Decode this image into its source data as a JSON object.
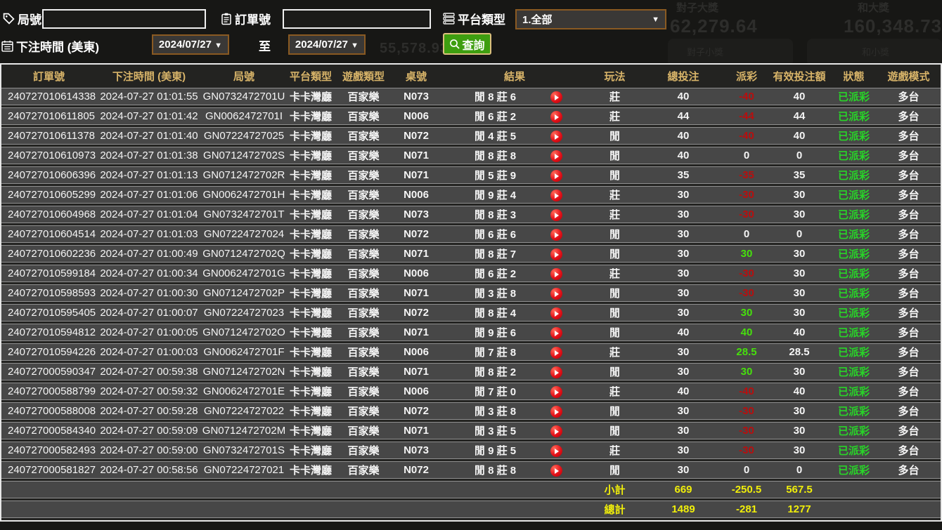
{
  "background_ghost": {
    "cards": [
      {
        "title": "對子大獎",
        "value": "62,279.64"
      },
      {
        "title": "和大獎",
        "value": "160,348.73"
      },
      {
        "title": "對子小獎",
        "value": ""
      },
      {
        "title": "和小獎",
        "value": ""
      }
    ],
    "amount_left": "55,578.93"
  },
  "filters": {
    "round_label": "局號",
    "order_label": "訂單號",
    "platform_label": "平台類型",
    "platform_value": "1.全部",
    "bet_time_label": "下注時間 (美東)",
    "date_from": "2024/07/27",
    "date_to": "2024/07/27",
    "to_label": "至",
    "search_label": "查詢",
    "dropdown_arrow": "▼"
  },
  "table": {
    "headers": [
      "訂單號",
      "下注時間 (美東)",
      "局號",
      "平台類型",
      "遊戲類型",
      "桌號",
      "結果",
      "玩法",
      "總投注",
      "派彩",
      "有效投注額",
      "狀態",
      "遊戲模式"
    ],
    "rows": [
      {
        "order": "240727010614338",
        "time": "2024-07-27 01:01:55",
        "round": "GN0732472701U",
        "platform": "卡卡灣廳",
        "game_type": "百家樂",
        "table_no": "N073",
        "result": "閒 8 莊 6",
        "play": "莊",
        "total_bet": "40",
        "payout": "-40",
        "valid_bet": "40",
        "status": "已派彩",
        "mode": "多台"
      },
      {
        "order": "240727010611805",
        "time": "2024-07-27 01:01:42",
        "round": "GN0062472701I",
        "platform": "卡卡灣廳",
        "game_type": "百家樂",
        "table_no": "N006",
        "result": "閒 6 莊 2",
        "play": "莊",
        "total_bet": "44",
        "payout": "-44",
        "valid_bet": "44",
        "status": "已派彩",
        "mode": "多台"
      },
      {
        "order": "240727010611378",
        "time": "2024-07-27 01:01:40",
        "round": "GN07224727025",
        "platform": "卡卡灣廳",
        "game_type": "百家樂",
        "table_no": "N072",
        "result": "閒 4 莊 5",
        "play": "閒",
        "total_bet": "40",
        "payout": "-40",
        "valid_bet": "40",
        "status": "已派彩",
        "mode": "多台"
      },
      {
        "order": "240727010610973",
        "time": "2024-07-27 01:01:38",
        "round": "GN0712472702S",
        "platform": "卡卡灣廳",
        "game_type": "百家樂",
        "table_no": "N071",
        "result": "閒 8 莊 8",
        "play": "閒",
        "total_bet": "40",
        "payout": "0",
        "valid_bet": "0",
        "status": "已派彩",
        "mode": "多台"
      },
      {
        "order": "240727010606396",
        "time": "2024-07-27 01:01:13",
        "round": "GN0712472702R",
        "platform": "卡卡灣廳",
        "game_type": "百家樂",
        "table_no": "N071",
        "result": "閒 5 莊 9",
        "play": "閒",
        "total_bet": "35",
        "payout": "-35",
        "valid_bet": "35",
        "status": "已派彩",
        "mode": "多台"
      },
      {
        "order": "240727010605299",
        "time": "2024-07-27 01:01:06",
        "round": "GN0062472701H",
        "platform": "卡卡灣廳",
        "game_type": "百家樂",
        "table_no": "N006",
        "result": "閒 9 莊 4",
        "play": "莊",
        "total_bet": "30",
        "payout": "-30",
        "valid_bet": "30",
        "status": "已派彩",
        "mode": "多台"
      },
      {
        "order": "240727010604968",
        "time": "2024-07-27 01:01:04",
        "round": "GN0732472701T",
        "platform": "卡卡灣廳",
        "game_type": "百家樂",
        "table_no": "N073",
        "result": "閒 8 莊 3",
        "play": "莊",
        "total_bet": "30",
        "payout": "-30",
        "valid_bet": "30",
        "status": "已派彩",
        "mode": "多台"
      },
      {
        "order": "240727010604514",
        "time": "2024-07-27 01:01:03",
        "round": "GN07224727024",
        "platform": "卡卡灣廳",
        "game_type": "百家樂",
        "table_no": "N072",
        "result": "閒 6 莊 6",
        "play": "閒",
        "total_bet": "30",
        "payout": "0",
        "valid_bet": "0",
        "status": "已派彩",
        "mode": "多台"
      },
      {
        "order": "240727010602236",
        "time": "2024-07-27 01:00:49",
        "round": "GN0712472702Q",
        "platform": "卡卡灣廳",
        "game_type": "百家樂",
        "table_no": "N071",
        "result": "閒 8 莊 7",
        "play": "閒",
        "total_bet": "30",
        "payout": "30",
        "valid_bet": "30",
        "status": "已派彩",
        "mode": "多台"
      },
      {
        "order": "240727010599184",
        "time": "2024-07-27 01:00:34",
        "round": "GN0062472701G",
        "platform": "卡卡灣廳",
        "game_type": "百家樂",
        "table_no": "N006",
        "result": "閒 6 莊 2",
        "play": "莊",
        "total_bet": "30",
        "payout": "-30",
        "valid_bet": "30",
        "status": "已派彩",
        "mode": "多台"
      },
      {
        "order": "240727010598593",
        "time": "2024-07-27 01:00:30",
        "round": "GN0712472702P",
        "platform": "卡卡灣廳",
        "game_type": "百家樂",
        "table_no": "N071",
        "result": "閒 3 莊 8",
        "play": "閒",
        "total_bet": "30",
        "payout": "-30",
        "valid_bet": "30",
        "status": "已派彩",
        "mode": "多台"
      },
      {
        "order": "240727010595405",
        "time": "2024-07-27 01:00:07",
        "round": "GN07224727023",
        "platform": "卡卡灣廳",
        "game_type": "百家樂",
        "table_no": "N072",
        "result": "閒 8 莊 4",
        "play": "閒",
        "total_bet": "30",
        "payout": "30",
        "valid_bet": "30",
        "status": "已派彩",
        "mode": "多台"
      },
      {
        "order": "240727010594812",
        "time": "2024-07-27 01:00:05",
        "round": "GN0712472702O",
        "platform": "卡卡灣廳",
        "game_type": "百家樂",
        "table_no": "N071",
        "result": "閒 9 莊 6",
        "play": "閒",
        "total_bet": "40",
        "payout": "40",
        "valid_bet": "40",
        "status": "已派彩",
        "mode": "多台"
      },
      {
        "order": "240727010594226",
        "time": "2024-07-27 01:00:03",
        "round": "GN0062472701F",
        "platform": "卡卡灣廳",
        "game_type": "百家樂",
        "table_no": "N006",
        "result": "閒 7 莊 8",
        "play": "莊",
        "total_bet": "30",
        "payout": "28.5",
        "valid_bet": "28.5",
        "status": "已派彩",
        "mode": "多台"
      },
      {
        "order": "240727000590347",
        "time": "2024-07-27 00:59:38",
        "round": "GN0712472702N",
        "platform": "卡卡灣廳",
        "game_type": "百家樂",
        "table_no": "N071",
        "result": "閒 8 莊 2",
        "play": "閒",
        "total_bet": "30",
        "payout": "30",
        "valid_bet": "30",
        "status": "已派彩",
        "mode": "多台"
      },
      {
        "order": "240727000588799",
        "time": "2024-07-27 00:59:32",
        "round": "GN0062472701E",
        "platform": "卡卡灣廳",
        "game_type": "百家樂",
        "table_no": "N006",
        "result": "閒 7 莊 0",
        "play": "莊",
        "total_bet": "40",
        "payout": "-40",
        "valid_bet": "40",
        "status": "已派彩",
        "mode": "多台"
      },
      {
        "order": "240727000588008",
        "time": "2024-07-27 00:59:28",
        "round": "GN07224727022",
        "platform": "卡卡灣廳",
        "game_type": "百家樂",
        "table_no": "N072",
        "result": "閒 3 莊 8",
        "play": "閒",
        "total_bet": "30",
        "payout": "-30",
        "valid_bet": "30",
        "status": "已派彩",
        "mode": "多台"
      },
      {
        "order": "240727000584340",
        "time": "2024-07-27 00:59:09",
        "round": "GN0712472702M",
        "platform": "卡卡灣廳",
        "game_type": "百家樂",
        "table_no": "N071",
        "result": "閒 3 莊 5",
        "play": "閒",
        "total_bet": "30",
        "payout": "-30",
        "valid_bet": "30",
        "status": "已派彩",
        "mode": "多台"
      },
      {
        "order": "240727000582493",
        "time": "2024-07-27 00:59:00",
        "round": "GN0732472701S",
        "platform": "卡卡灣廳",
        "game_type": "百家樂",
        "table_no": "N073",
        "result": "閒 9 莊 5",
        "play": "莊",
        "total_bet": "30",
        "payout": "-30",
        "valid_bet": "30",
        "status": "已派彩",
        "mode": "多台"
      },
      {
        "order": "240727000581827",
        "time": "2024-07-27 00:58:56",
        "round": "GN07224727021",
        "platform": "卡卡灣廳",
        "game_type": "百家樂",
        "table_no": "N072",
        "result": "閒 8 莊 8",
        "play": "閒",
        "total_bet": "30",
        "payout": "0",
        "valid_bet": "0",
        "status": "已派彩",
        "mode": "多台"
      }
    ],
    "subtotal": {
      "label": "小計",
      "total_bet": "669",
      "payout": "-250.5",
      "valid_bet": "567.5"
    },
    "total": {
      "label": "總計",
      "total_bet": "1489",
      "payout": "-281",
      "valid_bet": "1277"
    }
  },
  "colors": {
    "accent_gold": "#d8b469",
    "status_green": "#28d428",
    "payout_negative": "#b80e0e",
    "payout_positive": "#46e00c",
    "summary_yellow": "#f0ee0a",
    "button_green": "#3e9e10",
    "picker_border_brown": "#8a5a22"
  }
}
